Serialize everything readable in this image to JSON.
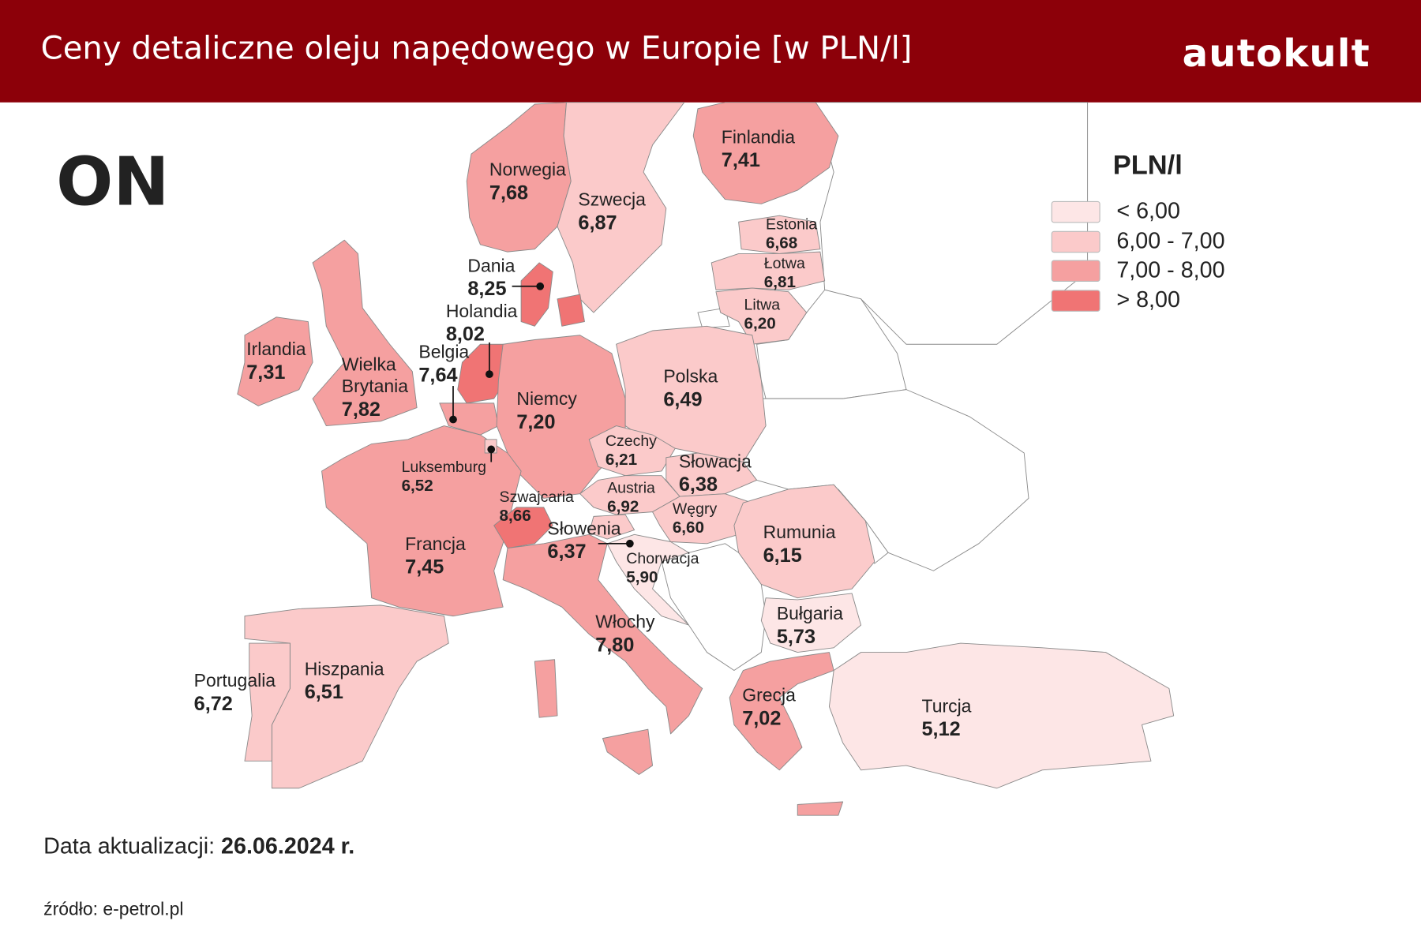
{
  "header": {
    "title": "Ceny detaliczne oleju napędowego w Europie [w PLN/l]",
    "brand": "autokult"
  },
  "fuel": "ON",
  "legend": {
    "title": "PLN/l",
    "items": [
      {
        "label": "< 6,00",
        "color": "#fde6e6"
      },
      {
        "label": "6,00 - 7,00",
        "color": "#fbcaca"
      },
      {
        "label": "7,00 - 8,00",
        "color": "#f5a0a0"
      },
      {
        "label": "> 8,00",
        "color": "#f07474"
      }
    ]
  },
  "countries": [
    {
      "name": "Norwegia",
      "value": "7,68",
      "color": "#f5a0a0"
    },
    {
      "name": "Szwecja",
      "value": "6,87",
      "color": "#fbcaca"
    },
    {
      "name": "Finlandia",
      "value": "7,41",
      "color": "#f5a0a0"
    },
    {
      "name": "Estonia",
      "value": "6,68",
      "color": "#fbcaca"
    },
    {
      "name": "Łotwa",
      "value": "6,81",
      "color": "#fbcaca"
    },
    {
      "name": "Litwa",
      "value": "6,20",
      "color": "#fbcaca"
    },
    {
      "name": "Dania",
      "value": "8,25",
      "color": "#f07474"
    },
    {
      "name": "Holandia",
      "value": "8,02",
      "color": "#f07474"
    },
    {
      "name": "Belgia",
      "value": "7,64",
      "color": "#f5a0a0"
    },
    {
      "name": "Irlandia",
      "value": "7,31",
      "color": "#f5a0a0"
    },
    {
      "name": "Wielka Brytania",
      "value": "7,82",
      "color": "#f5a0a0"
    },
    {
      "name": "Niemcy",
      "value": "7,20",
      "color": "#f5a0a0"
    },
    {
      "name": "Polska",
      "value": "6,49",
      "color": "#fbcaca"
    },
    {
      "name": "Czechy",
      "value": "6,21",
      "color": "#fbcaca"
    },
    {
      "name": "Słowacja",
      "value": "6,38",
      "color": "#fbcaca"
    },
    {
      "name": "Luksemburg",
      "value": "6,52",
      "color": "#fbcaca"
    },
    {
      "name": "Austria",
      "value": "6,92",
      "color": "#fbcaca"
    },
    {
      "name": "Szwajcaria",
      "value": "8,66",
      "color": "#f07474"
    },
    {
      "name": "Węgry",
      "value": "6,60",
      "color": "#fbcaca"
    },
    {
      "name": "Słowenia",
      "value": "6,37",
      "color": "#fbcaca"
    },
    {
      "name": "Rumunia",
      "value": "6,15",
      "color": "#fbcaca"
    },
    {
      "name": "Chorwacja",
      "value": "5,90",
      "color": "#fde6e6"
    },
    {
      "name": "Francja",
      "value": "7,45",
      "color": "#f5a0a0"
    },
    {
      "name": "Bułgaria",
      "value": "5,73",
      "color": "#fde6e6"
    },
    {
      "name": "Włochy",
      "value": "7,80",
      "color": "#f5a0a0"
    },
    {
      "name": "Portugalia",
      "value": "6,72",
      "color": "#fbcaca"
    },
    {
      "name": "Hiszpania",
      "value": "6,51",
      "color": "#fbcaca"
    },
    {
      "name": "Grecja",
      "value": "7,02",
      "color": "#f5a0a0"
    },
    {
      "name": "Turcja",
      "value": "5,12",
      "color": "#fde6e6"
    }
  ],
  "footer": {
    "date_label": "Data aktualizacji:",
    "date": "26.06.2024 r.",
    "source": "źródło: e-petrol.pl"
  }
}
